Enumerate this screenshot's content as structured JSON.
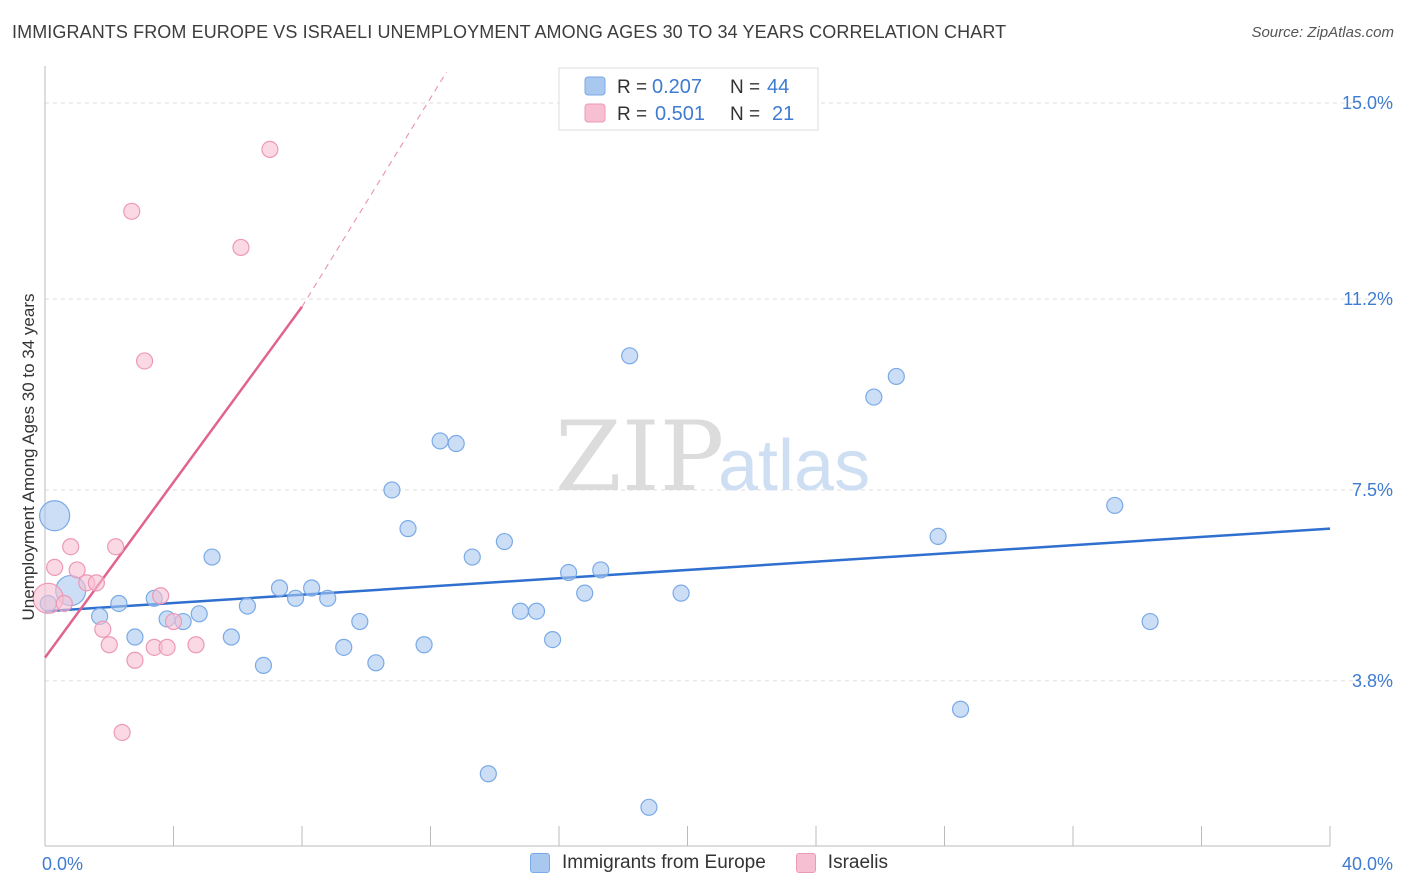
{
  "title": "IMMIGRANTS FROM EUROPE VS ISRAELI UNEMPLOYMENT AMONG AGES 30 TO 34 YEARS CORRELATION CHART",
  "source": "Source: ZipAtlas.com",
  "watermark": {
    "zip": "ZIP",
    "atlas": "atlas"
  },
  "colors": {
    "blue_fill": "#a8c8f0",
    "blue_stroke": "#7aaae6",
    "blue_line": "#2e6fcf",
    "pink_fill": "#f7bfd2",
    "pink_stroke": "#ec99b6",
    "pink_line": "#e0648f",
    "tick_label": "#3f7bd0",
    "grid": "#dddddd"
  },
  "legend": {
    "rows": [
      {
        "series": "blue",
        "r_label": "R =",
        "r_value": "0.207",
        "n_label": "N =",
        "n_value": "44"
      },
      {
        "series": "pink",
        "r_label": "R =",
        "r_value": "0.501",
        "n_label": "N =",
        "n_value": "21"
      }
    ]
  },
  "chart_data": {
    "type": "scatter",
    "title": "IMMIGRANTS FROM EUROPE VS ISRAELI UNEMPLOYMENT AMONG AGES 30 TO 34 YEARS CORRELATION CHART",
    "xlabel": "",
    "ylabel": "Unemployment Among Ages 30 to 34 years",
    "xlim": [
      0,
      40
    ],
    "ylim": [
      0.6,
      15.6
    ],
    "x_tick_labels": [
      {
        "value": 0,
        "label": "0.0%"
      },
      {
        "value": 40,
        "label": "40.0%"
      }
    ],
    "y_ticks": [
      {
        "value": 3.8,
        "label": "3.8%"
      },
      {
        "value": 7.5,
        "label": "7.5%"
      },
      {
        "value": 11.2,
        "label": "11.2%"
      },
      {
        "value": 15.0,
        "label": "15.0%"
      }
    ],
    "series": [
      {
        "name": "Immigrants from Europe",
        "color": "blue",
        "trend": {
          "x0": 0,
          "y0": 5.15,
          "x1": 40,
          "y1": 6.75
        },
        "points": [
          {
            "x": 0.3,
            "y": 7.0,
            "big": true
          },
          {
            "x": 0.8,
            "y": 5.55,
            "big": true
          },
          {
            "x": 1.7,
            "y": 5.05
          },
          {
            "x": 2.3,
            "y": 5.3
          },
          {
            "x": 2.8,
            "y": 4.65
          },
          {
            "x": 3.4,
            "y": 5.4
          },
          {
            "x": 3.8,
            "y": 5.0
          },
          {
            "x": 4.3,
            "y": 4.95
          },
          {
            "x": 4.8,
            "y": 5.1
          },
          {
            "x": 5.2,
            "y": 6.2
          },
          {
            "x": 5.8,
            "y": 4.65
          },
          {
            "x": 6.3,
            "y": 5.25
          },
          {
            "x": 6.8,
            "y": 4.1
          },
          {
            "x": 7.3,
            "y": 5.6
          },
          {
            "x": 7.8,
            "y": 5.4
          },
          {
            "x": 8.3,
            "y": 5.6
          },
          {
            "x": 8.8,
            "y": 5.4
          },
          {
            "x": 9.3,
            "y": 4.45
          },
          {
            "x": 9.8,
            "y": 4.95
          },
          {
            "x": 10.3,
            "y": 4.15
          },
          {
            "x": 10.8,
            "y": 7.5
          },
          {
            "x": 11.3,
            "y": 6.75
          },
          {
            "x": 11.8,
            "y": 4.5
          },
          {
            "x": 12.3,
            "y": 8.45
          },
          {
            "x": 12.8,
            "y": 8.4
          },
          {
            "x": 13.3,
            "y": 6.2
          },
          {
            "x": 13.8,
            "y": 2.0
          },
          {
            "x": 14.3,
            "y": 6.5
          },
          {
            "x": 14.8,
            "y": 5.15
          },
          {
            "x": 15.3,
            "y": 5.15
          },
          {
            "x": 15.8,
            "y": 4.6
          },
          {
            "x": 16.3,
            "y": 5.9
          },
          {
            "x": 16.8,
            "y": 5.5
          },
          {
            "x": 17.3,
            "y": 5.95
          },
          {
            "x": 18.2,
            "y": 10.1
          },
          {
            "x": 18.8,
            "y": 1.35
          },
          {
            "x": 19.8,
            "y": 5.5
          },
          {
            "x": 25.8,
            "y": 9.3
          },
          {
            "x": 26.5,
            "y": 9.7
          },
          {
            "x": 27.8,
            "y": 6.6
          },
          {
            "x": 28.5,
            "y": 3.25
          },
          {
            "x": 33.3,
            "y": 7.2
          },
          {
            "x": 34.4,
            "y": 4.95
          },
          {
            "x": 0.1,
            "y": 5.3
          }
        ]
      },
      {
        "name": "Israelis",
        "color": "pink",
        "trend": {
          "x0": 0,
          "y0": 4.25,
          "x1": 8.0,
          "y1": 11.05
        },
        "trend_dashed": {
          "x0": 8.0,
          "y0": 11.05,
          "x1": 12.5,
          "y1": 15.6
        },
        "points": [
          {
            "x": 0.1,
            "y": 5.4,
            "big": true
          },
          {
            "x": 0.3,
            "y": 6.0
          },
          {
            "x": 0.6,
            "y": 5.3
          },
          {
            "x": 0.8,
            "y": 6.4
          },
          {
            "x": 1.0,
            "y": 5.95
          },
          {
            "x": 1.3,
            "y": 5.7
          },
          {
            "x": 1.6,
            "y": 5.7
          },
          {
            "x": 1.8,
            "y": 4.8
          },
          {
            "x": 2.0,
            "y": 4.5
          },
          {
            "x": 2.2,
            "y": 6.4
          },
          {
            "x": 2.4,
            "y": 2.8
          },
          {
            "x": 2.8,
            "y": 4.2
          },
          {
            "x": 2.7,
            "y": 12.9
          },
          {
            "x": 3.1,
            "y": 10.0
          },
          {
            "x": 3.4,
            "y": 4.45
          },
          {
            "x": 3.6,
            "y": 5.45
          },
          {
            "x": 3.8,
            "y": 4.45
          },
          {
            "x": 4.0,
            "y": 4.95
          },
          {
            "x": 4.7,
            "y": 4.5
          },
          {
            "x": 6.1,
            "y": 12.2
          },
          {
            "x": 7.0,
            "y": 14.1
          }
        ]
      }
    ]
  },
  "bottom_legend": [
    {
      "series": "blue",
      "label": "Immigrants from Europe"
    },
    {
      "series": "pink",
      "label": "Israelis"
    }
  ]
}
